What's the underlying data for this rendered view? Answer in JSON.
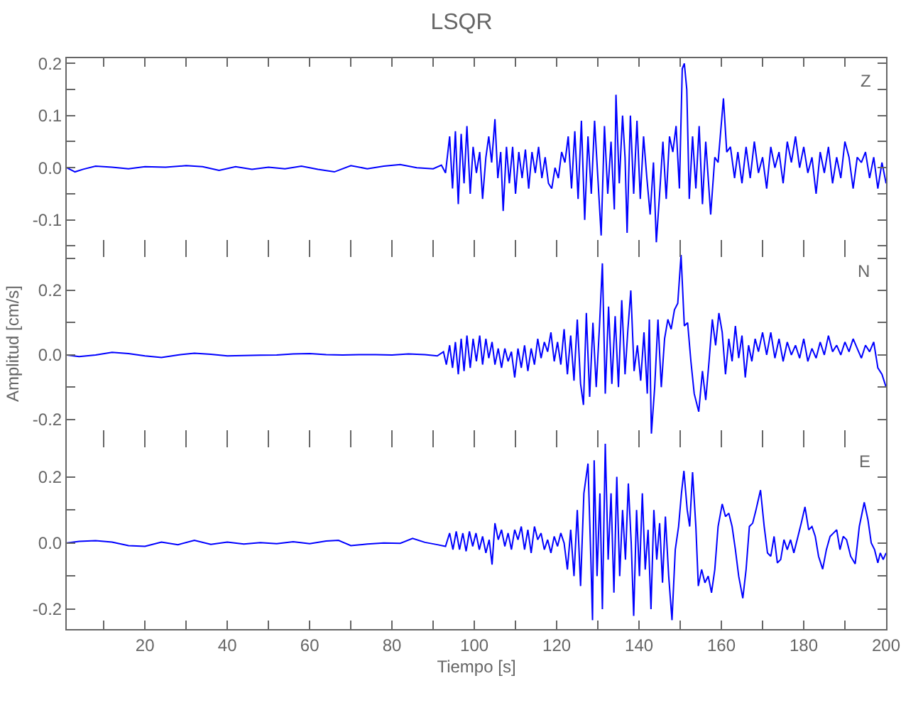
{
  "chart_data": [
    {
      "type": "line",
      "title": "LSQR",
      "annotations": [
        "Z"
      ],
      "xlim": [
        1,
        200
      ],
      "ylim": [
        -0.155,
        0.21
      ],
      "tick_labels": "y",
      "line_style": "solid",
      "xticks": [
        {
          "value": 10,
          "label": null
        },
        {
          "value": 20,
          "label": null
        },
        {
          "value": 30,
          "label": null
        },
        {
          "value": 40,
          "label": null
        },
        {
          "value": 50,
          "label": null
        },
        {
          "value": 60,
          "label": null
        },
        {
          "value": 70,
          "label": null
        },
        {
          "value": 80,
          "label": null
        },
        {
          "value": 90,
          "label": null
        },
        {
          "value": 100,
          "label": null
        },
        {
          "value": 110,
          "label": null
        },
        {
          "value": 120,
          "label": null
        },
        {
          "value": 130,
          "label": null
        },
        {
          "value": 140,
          "label": null
        },
        {
          "value": 150,
          "label": null
        },
        {
          "value": 160,
          "label": null
        },
        {
          "value": 170,
          "label": null
        },
        {
          "value": 180,
          "label": null
        },
        {
          "value": 190,
          "label": null
        },
        {
          "value": 200,
          "label": null
        }
      ],
      "yticks": [
        {
          "value": -0.15,
          "label": null
        },
        -0.1,
        {
          "value": -0.05,
          "label": null
        },
        {
          "value": 0,
          "label": "0.0"
        },
        {
          "value": 0.05,
          "label": null
        },
        0.1,
        {
          "value": 0.15,
          "label": null
        },
        0.2
      ],
      "series": [
        {
          "color": "#0000ff",
          "x": [
            1,
            3,
            5,
            8,
            12,
            16,
            20,
            25,
            30,
            34,
            38,
            42,
            46,
            50,
            54,
            58,
            62,
            66,
            70,
            74,
            78,
            82,
            86,
            90,
            92,
            93,
            94,
            94.7,
            95.4,
            96.1,
            96.8,
            97.5,
            98.2,
            99,
            99.7,
            100.5,
            101.3,
            102,
            102.8,
            103.5,
            104.2,
            105,
            105.7,
            106.4,
            107,
            107.8,
            108.5,
            109.3,
            110,
            110.8,
            111.6,
            112.4,
            113.2,
            114,
            114.8,
            115.6,
            116.4,
            117.2,
            118,
            118.8,
            119.6,
            120.4,
            121.2,
            122,
            122.8,
            123.6,
            124.4,
            125.2,
            126,
            126.8,
            127.6,
            128.4,
            129.2,
            130,
            130.8,
            131.6,
            132.4,
            133.2,
            134,
            134.4,
            135.2,
            136,
            136.6,
            137.1,
            137.9,
            138.7,
            139.5,
            140.3,
            141.1,
            141.9,
            142.7,
            143.5,
            144.2,
            145,
            145.8,
            146.6,
            147.4,
            148.2,
            149,
            149.8,
            150.5,
            151,
            151.6,
            152.2,
            153,
            153.8,
            154.6,
            155.4,
            156.2,
            157.4,
            158.4,
            159.2,
            160.5,
            161.3,
            162.2,
            163.2,
            164,
            165,
            166,
            167,
            168,
            169,
            170,
            171,
            172,
            173,
            174,
            175,
            176,
            177,
            178,
            179,
            180,
            181,
            182,
            183,
            184,
            185,
            186,
            187,
            188,
            189,
            190,
            191,
            192,
            193,
            194,
            195,
            196,
            197,
            198,
            199,
            200
          ],
          "values": [
            0,
            -0.008,
            -0.003,
            0.003,
            0.001,
            -0.002,
            0.002,
            0.001,
            0.004,
            0.002,
            -0.005,
            0.002,
            -0.003,
            0.001,
            -0.002,
            0.003,
            -0.003,
            -0.008,
            0.004,
            -0.002,
            0.003,
            0.006,
            0,
            -0.002,
            0.005,
            -0.01,
            0.06,
            -0.04,
            0.07,
            -0.07,
            0.065,
            -0.03,
            0.08,
            -0.05,
            0.04,
            -0.01,
            0.03,
            -0.06,
            0.02,
            0.06,
            0.01,
            0.093,
            -0.02,
            0.03,
            -0.083,
            0.04,
            -0.03,
            0.04,
            -0.05,
            0.03,
            -0.02,
            0.035,
            -0.04,
            0.03,
            -0.01,
            0.04,
            -0.02,
            0.02,
            -0.03,
            -0.04,
            0,
            -0.02,
            0.03,
            0.01,
            0.06,
            -0.04,
            0.07,
            -0.06,
            0.09,
            -0.1,
            0.06,
            -0.05,
            0.09,
            -0.02,
            -0.13,
            0.08,
            -0.05,
            0.05,
            -0.08,
            0.14,
            -0.03,
            0.1,
            0.02,
            -0.125,
            0.1,
            -0.05,
            0.09,
            -0.06,
            0.06,
            -0.02,
            -0.09,
            0.01,
            -0.143,
            -0.05,
            0.05,
            -0.06,
            0.06,
            0.03,
            0.08,
            -0.04,
            0.19,
            0.2,
            0.15,
            -0.06,
            0.06,
            -0.04,
            0.08,
            -0.07,
            0.05,
            -0.09,
            0.02,
            0.01,
            0.133,
            0.03,
            0.04,
            -0.02,
            0.03,
            -0.03,
            0.04,
            -0.02,
            0.05,
            -0.01,
            0.02,
            -0.04,
            0.04,
            0,
            0.03,
            -0.03,
            0.05,
            0.01,
            0.06,
            0,
            0.04,
            -0.01,
            0.02,
            -0.05,
            0.03,
            -0.01,
            0.04,
            -0.03,
            0.02,
            -0.02,
            0.05,
            0.02,
            -0.04,
            0.02,
            0.01,
            0.03,
            -0.02,
            0.02,
            -0.04,
            0.01,
            -0.03
          ]
        }
      ]
    },
    {
      "type": "line",
      "ylabel": "Amplitud [cm/s]",
      "annotations": [
        "N"
      ],
      "xlim": [
        1,
        200
      ],
      "ylim": [
        -0.26,
        0.33
      ],
      "tick_labels": "y",
      "line_style": "solid",
      "xticks": [
        {
          "value": 10,
          "label": null
        },
        {
          "value": 20,
          "label": null
        },
        {
          "value": 30,
          "label": null
        },
        {
          "value": 40,
          "label": null
        },
        {
          "value": 50,
          "label": null
        },
        {
          "value": 60,
          "label": null
        },
        {
          "value": 70,
          "label": null
        },
        {
          "value": 80,
          "label": null
        },
        {
          "value": 90,
          "label": null
        },
        {
          "value": 100,
          "label": null
        },
        {
          "value": 110,
          "label": null
        },
        {
          "value": 120,
          "label": null
        },
        {
          "value": 130,
          "label": null
        },
        {
          "value": 140,
          "label": null
        },
        {
          "value": 150,
          "label": null
        },
        {
          "value": 160,
          "label": null
        },
        {
          "value": 170,
          "label": null
        },
        {
          "value": 180,
          "label": null
        },
        {
          "value": 190,
          "label": null
        },
        {
          "value": 200,
          "label": null
        }
      ],
      "yticks": [
        -0.2,
        {
          "value": -0.1,
          "label": null
        },
        {
          "value": 0,
          "label": "0.0"
        },
        {
          "value": 0.1,
          "label": null
        },
        0.2,
        {
          "value": 0.3,
          "label": null
        }
      ],
      "series": [
        {
          "color": "#0000ff",
          "x": [
            1,
            4,
            8,
            12,
            16,
            20,
            24,
            28,
            32,
            36,
            40,
            44,
            48,
            52,
            56,
            60,
            64,
            68,
            72,
            76,
            80,
            84,
            88,
            91,
            92.5,
            93.2,
            94,
            94.7,
            95.4,
            96.1,
            96.8,
            97.5,
            98.2,
            99,
            99.7,
            100.5,
            101.3,
            102,
            102.8,
            103.5,
            104.3,
            105,
            105.8,
            106.6,
            107.4,
            108.2,
            109,
            109.8,
            110.6,
            111.4,
            112.2,
            113,
            113.8,
            114.6,
            115.4,
            116.2,
            117,
            117.8,
            118.6,
            119.4,
            120.2,
            121,
            121.8,
            122.6,
            123.4,
            124.2,
            125,
            125.8,
            126.5,
            127.2,
            128,
            128.8,
            129.6,
            130.4,
            131.1,
            131.8,
            132.6,
            133.4,
            134.2,
            135,
            135.8,
            136.6,
            137.3,
            138,
            138.8,
            139.6,
            140.4,
            141.2,
            142,
            142.5,
            143,
            143.8,
            144.6,
            145.4,
            146.2,
            147,
            147.8,
            148.6,
            149.4,
            150.2,
            151,
            151.8,
            152.6,
            153.4,
            154.5,
            155.4,
            156.2,
            157,
            157.8,
            158.6,
            159.4,
            160.2,
            161,
            161.8,
            162.6,
            163.4,
            164.2,
            165,
            165.8,
            166.6,
            167.4,
            168.2,
            169,
            170,
            171,
            172,
            173,
            174,
            175,
            176,
            177,
            178,
            179,
            180,
            181,
            182,
            183,
            184,
            185,
            186,
            187,
            188,
            189,
            190,
            191,
            192,
            193,
            194,
            195,
            196,
            197,
            198,
            199,
            200
          ],
          "values": [
            0,
            -0.005,
            0,
            0.008,
            0.004,
            -0.003,
            -0.008,
            0,
            0.005,
            0.002,
            -0.003,
            -0.002,
            -0.001,
            0,
            0.003,
            0.004,
            0.001,
            0,
            0.001,
            0.001,
            0,
            0.003,
            0.001,
            -0.003,
            0.01,
            -0.03,
            0.03,
            -0.04,
            0.04,
            -0.06,
            0.05,
            -0.05,
            0.06,
            -0.04,
            0.05,
            -0.02,
            0.06,
            -0.03,
            0.05,
            -0.01,
            0.04,
            -0.03,
            0.02,
            -0.04,
            0.02,
            -0.02,
            0.01,
            -0.07,
            0.02,
            -0.04,
            0.03,
            -0.05,
            0.02,
            -0.03,
            0.05,
            -0.01,
            0.04,
            0.01,
            0.07,
            -0.02,
            0.04,
            -0.03,
            0.08,
            -0.06,
            0.06,
            -0.08,
            0.11,
            -0.09,
            -0.155,
            0.13,
            -0.13,
            0.1,
            -0.1,
            0.09,
            0.284,
            -0.12,
            0.15,
            -0.09,
            0.12,
            -0.1,
            0.17,
            -0.06,
            0.08,
            0.2,
            -0.05,
            0.03,
            -0.08,
            0.07,
            -0.12,
            0.11,
            -0.244,
            -0.1,
            0.11,
            -0.1,
            0.05,
            0.11,
            0.08,
            0.14,
            0.16,
            0.31,
            0.09,
            0.1,
            -0.02,
            -0.12,
            -0.176,
            -0.05,
            -0.14,
            -0.02,
            0.11,
            0.03,
            0.13,
            0.07,
            -0.06,
            0.05,
            -0.02,
            0.09,
            -0.01,
            0.06,
            -0.07,
            0.03,
            -0.02,
            0.05,
            0.01,
            0.07,
            0,
            0.07,
            -0.01,
            0.05,
            -0.02,
            0.04,
            0,
            0.03,
            -0.01,
            0.05,
            -0.02,
            0.02,
            -0.01,
            0.04,
            0,
            0.06,
            0.01,
            0.03,
            0,
            0.04,
            0.01,
            0.05,
            0.02,
            -0.01,
            0.03,
            0.01,
            0.04,
            -0.04,
            -0.06,
            -0.1
          ]
        }
      ]
    },
    {
      "type": "line",
      "xlabel": "Tiempo [s]",
      "annotations": [
        "E"
      ],
      "xlim": [
        1,
        200
      ],
      "ylim": [
        -0.26,
        0.315
      ],
      "line_style": "solid",
      "xticks": [
        {
          "value": 10,
          "label": null
        },
        20,
        {
          "value": 30,
          "label": null
        },
        40,
        {
          "value": 50,
          "label": null
        },
        60,
        {
          "value": 70,
          "label": null
        },
        80,
        {
          "value": 90,
          "label": null
        },
        100,
        {
          "value": 110,
          "label": null
        },
        120,
        {
          "value": 130,
          "label": null
        },
        140,
        {
          "value": 150,
          "label": null
        },
        160,
        {
          "value": 170,
          "label": null
        },
        180,
        {
          "value": 190,
          "label": null
        },
        200
      ],
      "yticks": [
        -0.2,
        {
          "value": -0.1,
          "label": null
        },
        {
          "value": 0,
          "label": "0.0"
        },
        {
          "value": 0.1,
          "label": null
        },
        0.2
      ],
      "series": [
        {
          "color": "#0000ff",
          "x": [
            1,
            4,
            8,
            12,
            16,
            20,
            24,
            28,
            32,
            36,
            40,
            44,
            48,
            52,
            56,
            60,
            64,
            67,
            70,
            74,
            78,
            82,
            85,
            88,
            91,
            93,
            94,
            94.8,
            95.6,
            96.4,
            97.2,
            98,
            98.8,
            99.6,
            100.4,
            101.2,
            102,
            102.8,
            103.6,
            104.3,
            105,
            105.8,
            106.6,
            107.4,
            108.2,
            109,
            109.8,
            110.6,
            111.4,
            112.2,
            113,
            113.8,
            114.6,
            115.4,
            116.2,
            117,
            117.8,
            118.6,
            119.4,
            120.2,
            121,
            121.8,
            122.6,
            123.4,
            124.2,
            125,
            125.8,
            126.6,
            127.6,
            128.3,
            128.7,
            129.1,
            129.8,
            130.5,
            131.1,
            131.8,
            132.5,
            133.2,
            133.9,
            134.6,
            135.3,
            136,
            136.7,
            137.4,
            138.1,
            138.7,
            139.4,
            140.1,
            140.8,
            141.5,
            142.2,
            142.9,
            143.6,
            144.3,
            145,
            145.7,
            146.4,
            147.2,
            148,
            148.8,
            149.6,
            150.3,
            150.9,
            151.7,
            152.3,
            153,
            153.8,
            154.4,
            155.2,
            156,
            156.8,
            157.6,
            158.4,
            159.2,
            160.2,
            161,
            161.8,
            162.6,
            163.4,
            164.2,
            165.2,
            166,
            166.8,
            167.6,
            168.4,
            169.5,
            170.4,
            171.2,
            172,
            172.8,
            173.6,
            174.4,
            175.2,
            176,
            176.8,
            177.6,
            178.4,
            179.4,
            180.3,
            181.2,
            182,
            182.8,
            183.6,
            184.6,
            185.5,
            186.4,
            187.2,
            188,
            188.8,
            189.6,
            190.4,
            191.4,
            192.5,
            193.5,
            194.7,
            195.6,
            196.4,
            197.2,
            198,
            198.6,
            199.3,
            200
          ],
          "values": [
            0,
            0.005,
            0.007,
            0.003,
            -0.008,
            -0.01,
            0.003,
            -0.005,
            0.008,
            -0.004,
            0.003,
            -0.003,
            0.001,
            -0.002,
            0.004,
            -0.002,
            0.006,
            0.008,
            -0.008,
            -0.003,
            0,
            -0.001,
            0.014,
            0.002,
            -0.005,
            -0.01,
            0.03,
            -0.02,
            0.035,
            -0.02,
            0.03,
            -0.025,
            0.035,
            -0.01,
            0.03,
            -0.02,
            0.02,
            -0.03,
            0.01,
            -0.065,
            0.06,
            0.01,
            0.04,
            -0.01,
            0.03,
            -0.02,
            0.04,
            0.01,
            0.05,
            -0.02,
            0.04,
            -0.03,
            0.05,
            0.01,
            0.03,
            -0.02,
            0.01,
            -0.03,
            0.02,
            -0.01,
            0.03,
            0,
            -0.08,
            0.04,
            -0.1,
            0.1,
            -0.13,
            0.15,
            0.24,
            -0.05,
            -0.233,
            0.25,
            -0.1,
            0.15,
            -0.2,
            0.3,
            -0.05,
            0.15,
            -0.15,
            0.2,
            -0.1,
            0.1,
            -0.05,
            0.18,
            0,
            -0.22,
            0.1,
            -0.1,
            0.15,
            -0.08,
            0.04,
            -0.2,
            0.1,
            -0.05,
            0.06,
            -0.12,
            0.08,
            -0.1,
            -0.233,
            -0.02,
            0.05,
            0.15,
            0.218,
            0.1,
            0.05,
            0.214,
            0.05,
            -0.13,
            -0.08,
            -0.12,
            -0.1,
            -0.15,
            -0.08,
            0.05,
            0.118,
            0.08,
            0.09,
            0.05,
            -0.02,
            -0.1,
            -0.167,
            -0.08,
            0.05,
            0.06,
            0.1,
            0.16,
            0.05,
            -0.03,
            -0.04,
            0.02,
            -0.06,
            -0.05,
            0.01,
            -0.02,
            0.01,
            -0.03,
            0.01,
            0.06,
            0.109,
            0.04,
            0.05,
            0.02,
            -0.04,
            -0.079,
            -0.02,
            0.02,
            0.03,
            0.04,
            -0.02,
            0.02,
            0.01,
            -0.04,
            -0.063,
            0.05,
            0.123,
            0.07,
            0,
            -0.02,
            -0.06,
            -0.03,
            -0.05,
            -0.03
          ]
        }
      ]
    }
  ]
}
